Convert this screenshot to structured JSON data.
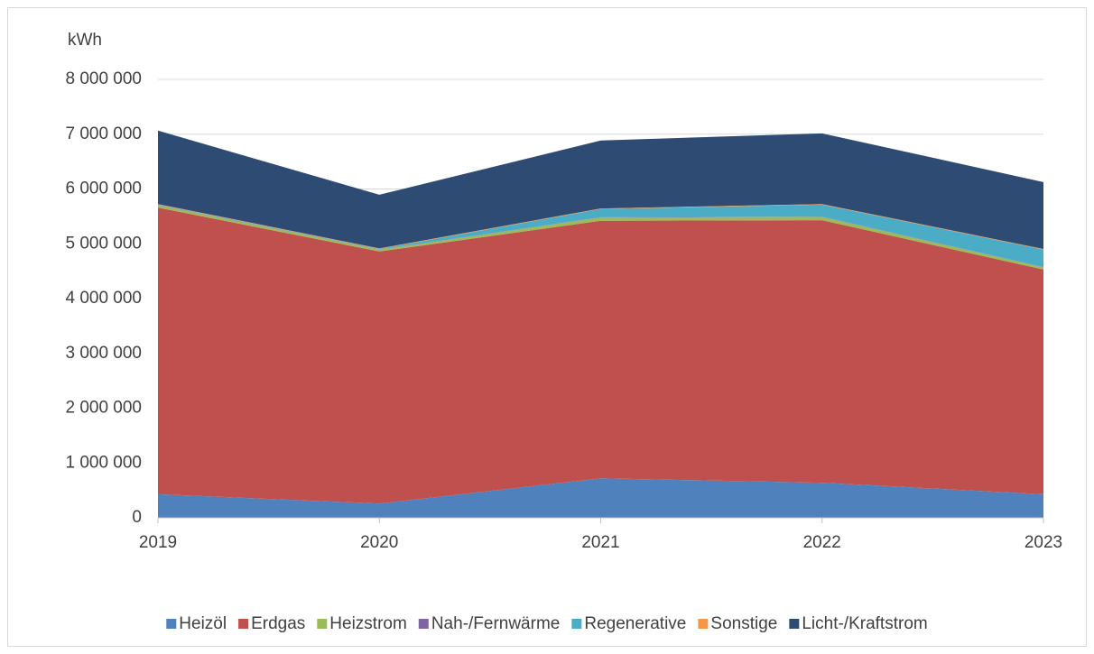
{
  "chart_data": {
    "type": "stacked_area",
    "y_label": "kWh",
    "categories": [
      "2019",
      "2020",
      "2021",
      "2022",
      "2023"
    ],
    "series": [
      {
        "name": "Heizöl",
        "color": "#4f81bd",
        "values": [
          430000,
          260000,
          720000,
          640000,
          430000
        ]
      },
      {
        "name": "Erdgas",
        "color": "#c0504d",
        "values": [
          5230000,
          4600000,
          4700000,
          4790000,
          4100000
        ]
      },
      {
        "name": "Heizstrom",
        "color": "#9bbb59",
        "values": [
          40000,
          30000,
          60000,
          60000,
          40000
        ]
      },
      {
        "name": "Nah-/Fernwärme",
        "color": "#8064a2",
        "values": [
          5000,
          5000,
          5000,
          5000,
          5000
        ]
      },
      {
        "name": "Regenerative",
        "color": "#4bacc6",
        "values": [
          10000,
          10000,
          150000,
          220000,
          320000
        ]
      },
      {
        "name": "Sonstige",
        "color": "#f79646",
        "values": [
          10000,
          10000,
          10000,
          10000,
          10000
        ]
      },
      {
        "name": "Licht-/Kraftstrom",
        "color": "#2e4b73",
        "values": [
          1340000,
          980000,
          1240000,
          1290000,
          1220000
        ]
      }
    ],
    "ylim": [
      0,
      8000000
    ],
    "yticks": [
      0,
      {
        "value": 1000000,
        "label": "1 000 000"
      },
      {
        "value": 2000000,
        "label": "2 000 000"
      },
      {
        "value": 3000000,
        "label": "3 000 000"
      },
      {
        "value": 4000000,
        "label": "4 000 000"
      },
      {
        "value": 5000000,
        "label": "5 000 000"
      },
      {
        "value": 6000000,
        "label": "6 000 000"
      },
      {
        "value": 7000000,
        "label": "7 000 000"
      },
      {
        "value": 8000000,
        "label": "8 000 000"
      }
    ],
    "grid": true,
    "legend": "bottom"
  }
}
